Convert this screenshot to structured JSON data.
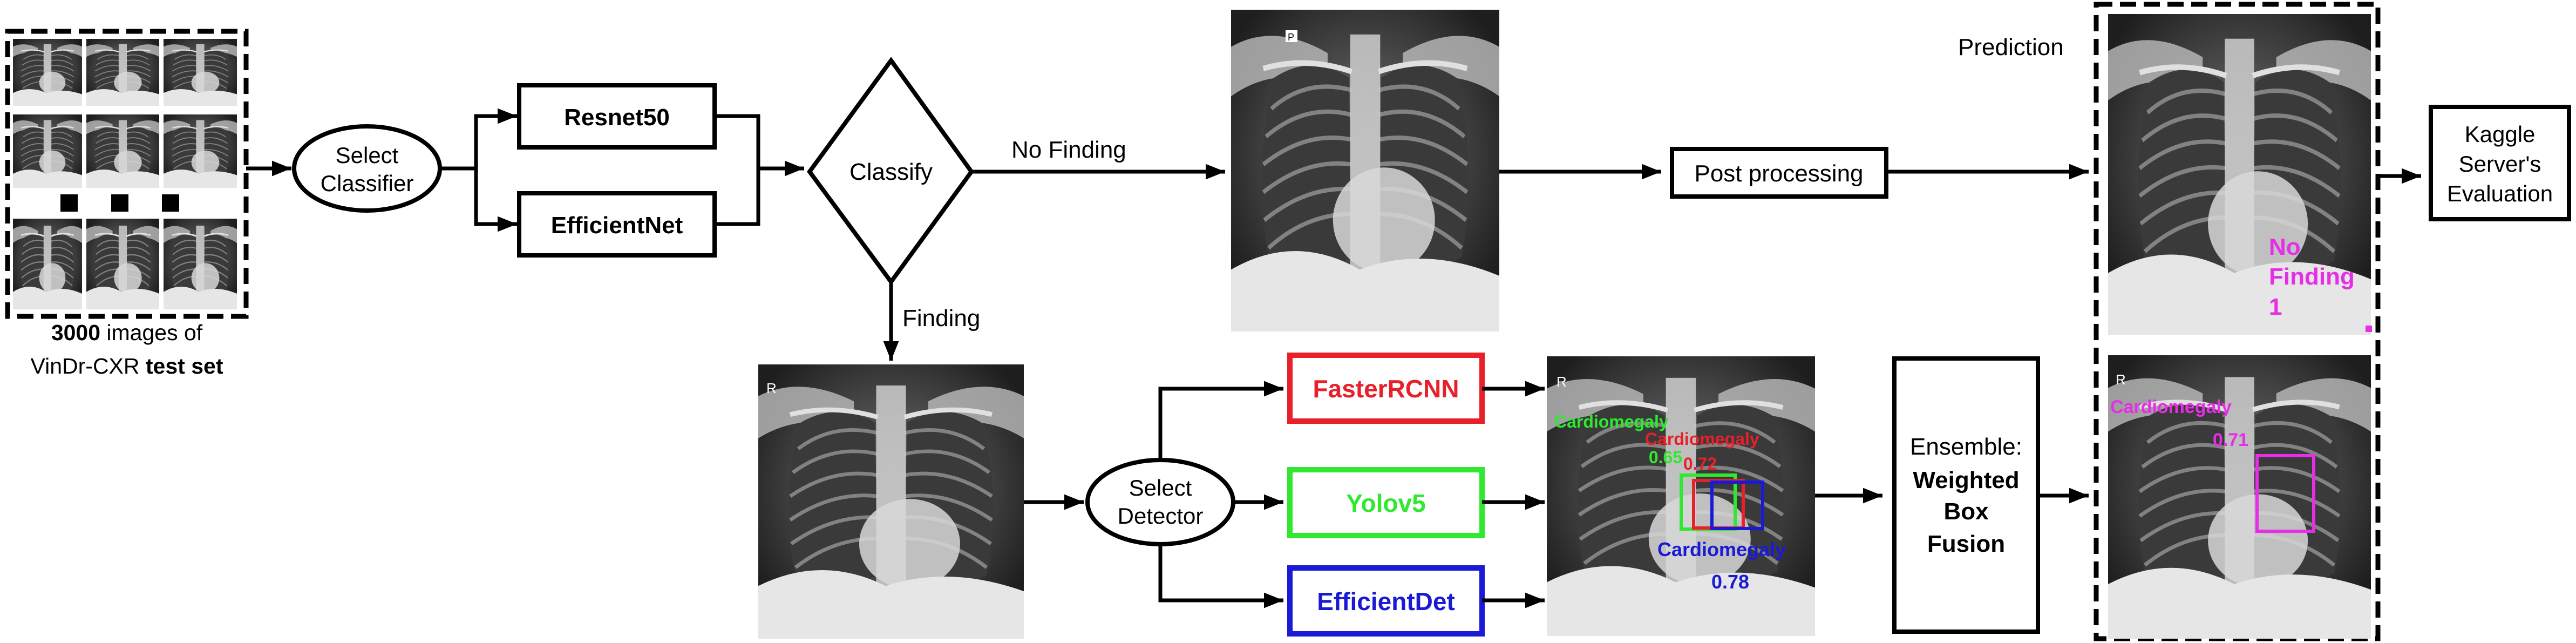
{
  "input": {
    "count": "3000",
    "line1_suffix": " images of",
    "line2_prefix": "VinDr-CXR ",
    "line2_bold": "test set"
  },
  "select_classifier": {
    "line1": "Select",
    "line2": "Classifier"
  },
  "classifiers": {
    "resnet": "Resnet50",
    "efficientnet": "EfficientNet"
  },
  "classify": {
    "label": "Classify",
    "no_finding_branch": "No Finding",
    "finding_branch": "Finding"
  },
  "post_processing": {
    "label": "Post processing"
  },
  "prediction": {
    "title": "Prediction",
    "no_finding_line1": "No",
    "no_finding_line2": "Finding",
    "no_finding_score": "1",
    "finding_label": "Cardiomegaly",
    "finding_score": "0.71"
  },
  "kaggle": {
    "line1": "Kaggle",
    "line2": "Server's",
    "line3": "Evaluation"
  },
  "select_detector": {
    "line1": "Select",
    "line2": "Detector"
  },
  "detectors": {
    "faster_rcnn": "FasterRCNN",
    "yolov5": "Yolov5",
    "efficientdet": "EfficientDet"
  },
  "detections": {
    "green_label": "Cardiomegaly",
    "green_score": "0.65",
    "red_label": "Cardiomegaly",
    "red_score": "0.72",
    "blue_label": "Cardiomegaly",
    "blue_score": "0.78"
  },
  "ensemble": {
    "line1": "Ensemble:",
    "line2": "Weighted",
    "line3": "Box",
    "line4": "Fusion"
  },
  "xray_marker_p": "P",
  "xray_marker_r": "R",
  "colors": {
    "red": "#e8202a",
    "green": "#2fe82f",
    "blue": "#1a1ad6",
    "magenta": "#e62ee6",
    "black": "#000000"
  }
}
